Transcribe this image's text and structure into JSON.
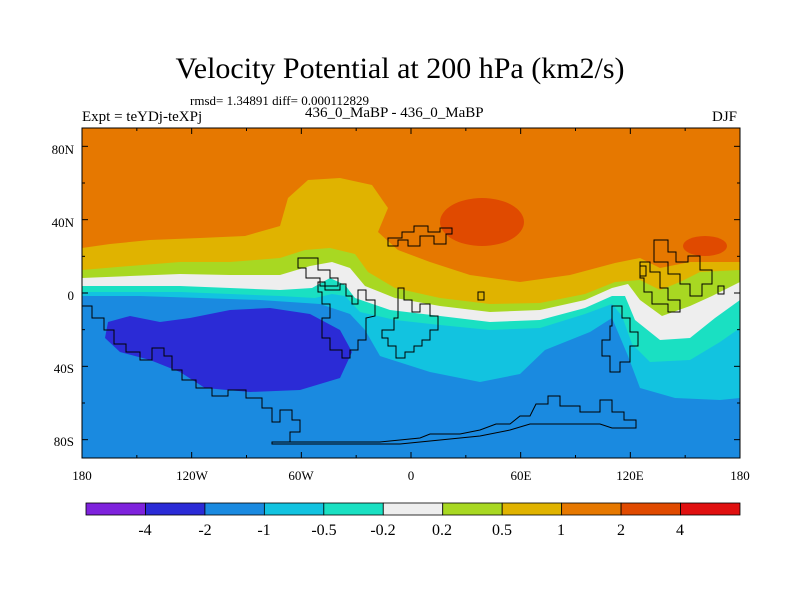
{
  "title": "Velocity Potential at 200 hPa (km2/s)",
  "stats_line": "rmsd= 1.34891 diff= 0.000112829",
  "left_label": "Expt = teYDj-teXPj",
  "center_label": "436_0_MaBP - 436_0_MaBP",
  "right_label": "DJF",
  "map": {
    "lat_ticks": [
      "80N",
      "40N",
      "0",
      "40S",
      "80S"
    ],
    "lon_ticks": [
      "180",
      "120W",
      "60W",
      "0",
      "60E",
      "120E",
      "180"
    ]
  },
  "colorbar": {
    "labels": [
      "-4",
      "-2",
      "-1",
      "-0.5",
      "-0.2",
      "0.2",
      "0.5",
      "1",
      "2",
      "4"
    ],
    "colors": [
      "#7e22dc",
      "#2b2bd6",
      "#1a8ae0",
      "#12c3e0",
      "#1ae0c2",
      "#eeeeee",
      "#a8d822",
      "#e0b300",
      "#e67800",
      "#e04a00",
      "#e01010"
    ]
  },
  "palette": {
    "land_outline": "#000000",
    "frame": "#000000"
  }
}
